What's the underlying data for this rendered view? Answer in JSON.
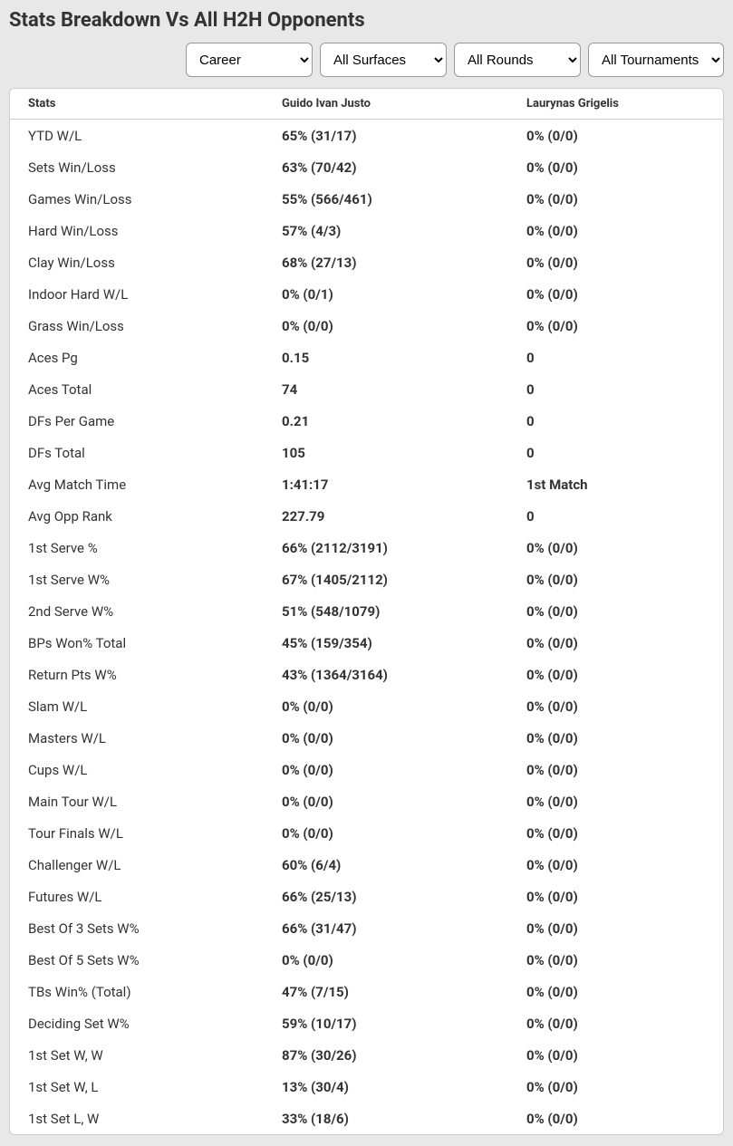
{
  "title": "Stats Breakdown Vs All H2H Opponents",
  "filters": {
    "period": "Career",
    "surfaces": "All Surfaces",
    "rounds": "All Rounds",
    "tournaments": "All Tournaments"
  },
  "table": {
    "headers": {
      "stats": "Stats",
      "p1": "Guido Ivan Justo",
      "p2": "Laurynas Grigelis"
    },
    "rows": [
      {
        "label": "YTD W/L",
        "p1": "65% (31/17)",
        "p2": "0% (0/0)"
      },
      {
        "label": "Sets Win/Loss",
        "p1": "63% (70/42)",
        "p2": "0% (0/0)"
      },
      {
        "label": "Games Win/Loss",
        "p1": "55% (566/461)",
        "p2": "0% (0/0)"
      },
      {
        "label": "Hard Win/Loss",
        "p1": "57% (4/3)",
        "p2": "0% (0/0)"
      },
      {
        "label": "Clay Win/Loss",
        "p1": "68% (27/13)",
        "p2": "0% (0/0)"
      },
      {
        "label": "Indoor Hard W/L",
        "p1": "0% (0/1)",
        "p2": "0% (0/0)"
      },
      {
        "label": "Grass Win/Loss",
        "p1": "0% (0/0)",
        "p2": "0% (0/0)"
      },
      {
        "label": "Aces Pg",
        "p1": "0.15",
        "p2": "0"
      },
      {
        "label": "Aces Total",
        "p1": "74",
        "p2": "0"
      },
      {
        "label": "DFs Per Game",
        "p1": "0.21",
        "p2": "0"
      },
      {
        "label": "DFs Total",
        "p1": "105",
        "p2": "0"
      },
      {
        "label": "Avg Match Time",
        "p1": "1:41:17",
        "p2": "1st Match"
      },
      {
        "label": "Avg Opp Rank",
        "p1": "227.79",
        "p2": "0"
      },
      {
        "label": "1st Serve %",
        "p1": "66% (2112/3191)",
        "p2": "0% (0/0)"
      },
      {
        "label": "1st Serve W%",
        "p1": "67% (1405/2112)",
        "p2": "0% (0/0)"
      },
      {
        "label": "2nd Serve W%",
        "p1": "51% (548/1079)",
        "p2": "0% (0/0)"
      },
      {
        "label": "BPs Won% Total",
        "p1": "45% (159/354)",
        "p2": "0% (0/0)"
      },
      {
        "label": "Return Pts W%",
        "p1": "43% (1364/3164)",
        "p2": "0% (0/0)"
      },
      {
        "label": "Slam W/L",
        "p1": "0% (0/0)",
        "p2": "0% (0/0)"
      },
      {
        "label": "Masters W/L",
        "p1": "0% (0/0)",
        "p2": "0% (0/0)"
      },
      {
        "label": "Cups W/L",
        "p1": "0% (0/0)",
        "p2": "0% (0/0)"
      },
      {
        "label": "Main Tour W/L",
        "p1": "0% (0/0)",
        "p2": "0% (0/0)"
      },
      {
        "label": "Tour Finals W/L",
        "p1": "0% (0/0)",
        "p2": "0% (0/0)"
      },
      {
        "label": "Challenger W/L",
        "p1": "60% (6/4)",
        "p2": "0% (0/0)"
      },
      {
        "label": "Futures W/L",
        "p1": "66% (25/13)",
        "p2": "0% (0/0)"
      },
      {
        "label": "Best Of 3 Sets W%",
        "p1": "66% (31/47)",
        "p2": "0% (0/0)"
      },
      {
        "label": "Best Of 5 Sets W%",
        "p1": "0% (0/0)",
        "p2": "0% (0/0)"
      },
      {
        "label": "TBs Win% (Total)",
        "p1": "47% (7/15)",
        "p2": "0% (0/0)"
      },
      {
        "label": "Deciding Set W%",
        "p1": "59% (10/17)",
        "p2": "0% (0/0)"
      },
      {
        "label": "1st Set W, W",
        "p1": "87% (30/26)",
        "p2": "0% (0/0)"
      },
      {
        "label": "1st Set W, L",
        "p1": "13% (30/4)",
        "p2": "0% (0/0)"
      },
      {
        "label": "1st Set L, W",
        "p1": "33% (18/6)",
        "p2": "0% (0/0)"
      }
    ]
  },
  "colors": {
    "page_bg": "#e8e8e8",
    "card_bg": "#ffffff",
    "border": "#cccccc",
    "text": "#333333"
  }
}
